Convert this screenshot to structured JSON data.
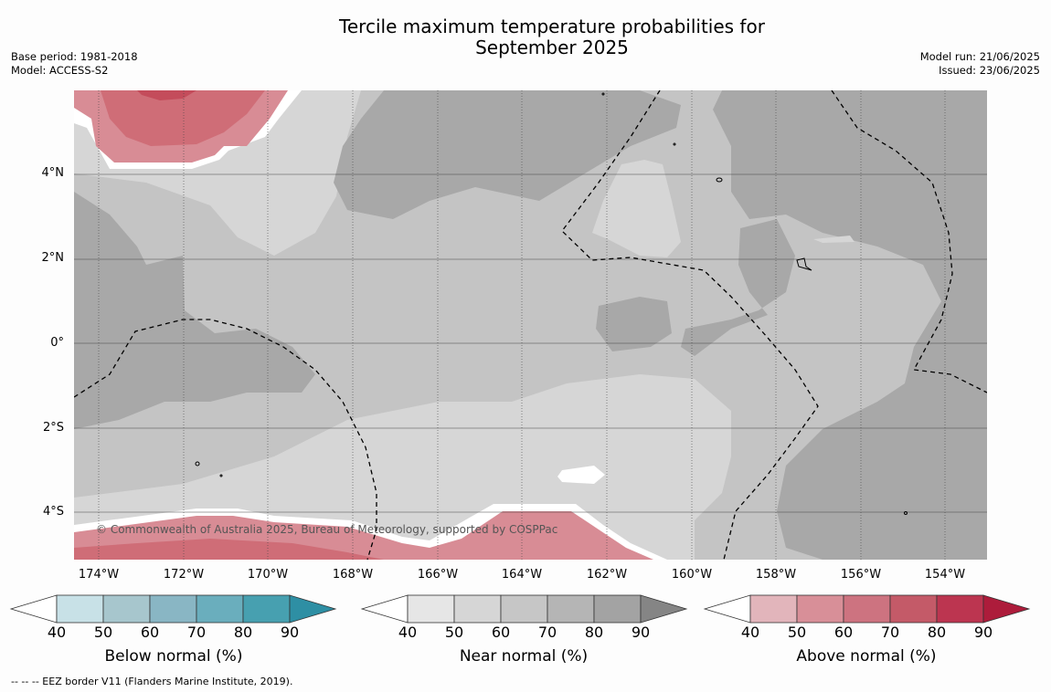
{
  "header": {
    "title_line1": "Tercile maximum temperature probabilities for",
    "title_line2": "September 2025",
    "base_period": "Base period: 1981-2018",
    "model": "Model: ACCESS-S2",
    "model_run": "Model run: 21/06/2025",
    "issued": "Issued: 23/06/2025"
  },
  "map": {
    "latitude_labels": [
      "4°N",
      "2°N",
      "0°",
      "2°S",
      "4°S"
    ],
    "longitude_labels": [
      "174°W",
      "172°W",
      "170°W",
      "168°W",
      "166°W",
      "164°W",
      "162°W",
      "160°W",
      "158°W",
      "156°W",
      "154°W"
    ],
    "copyright": "© Commonwealth of Australia 2025, Bureau of Meteorology, supported by COSPPac",
    "legend_note": "--  --  -- EEZ border V11 (Flanders Marine Institute, 2019).",
    "colors": {
      "ocean_below_40": "#ffffff",
      "near_40_50": "#e6e6e6",
      "near_50_60": "#d6d6d6",
      "near_60_70": "#c4c4c4",
      "near_70_80": "#a8a8a8",
      "above_50_60": "#d88c95",
      "above_60_70": "#cf6d77",
      "above_70_80": "#c44c5b"
    }
  },
  "colorbars": [
    {
      "label": "Below normal (%)",
      "ticks": [
        "40",
        "50",
        "60",
        "70",
        "80",
        "90"
      ],
      "colors": [
        "#c8e1e7",
        "#a7c6cd",
        "#89b6c4",
        "#6aaebd",
        "#47a0b0",
        "#2e8fa4"
      ]
    },
    {
      "label": "Near normal (%)",
      "ticks": [
        "40",
        "50",
        "60",
        "70",
        "80",
        "90"
      ],
      "colors": [
        "#e6e6e6",
        "#d6d6d6",
        "#c6c6c6",
        "#b5b5b5",
        "#a3a3a3",
        "#858585"
      ]
    },
    {
      "label": "Above normal (%)",
      "ticks": [
        "40",
        "50",
        "60",
        "70",
        "80",
        "90"
      ],
      "colors": [
        "#e2b5bb",
        "#d88f98",
        "#cd7380",
        "#c45a68",
        "#bc3550",
        "#ad1c3b"
      ]
    }
  ]
}
